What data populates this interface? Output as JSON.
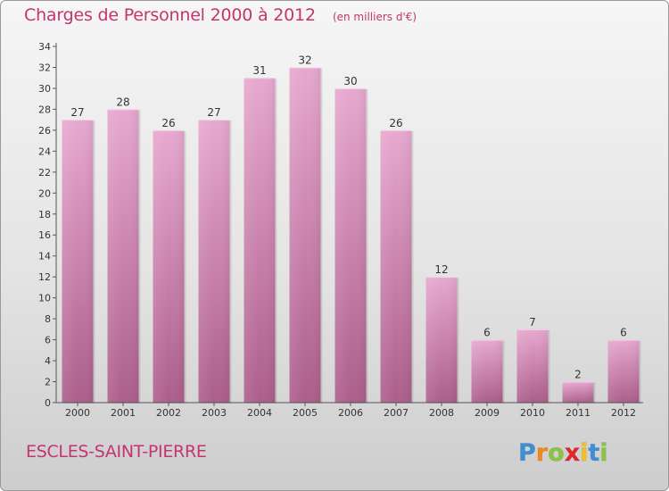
{
  "chart_data": {
    "type": "bar",
    "title": "Charges de Personnel 2000 à 2012",
    "unit_note": "(en milliers d'€)",
    "categories": [
      "2000",
      "2001",
      "2002",
      "2003",
      "2004",
      "2005",
      "2006",
      "2007",
      "2008",
      "2009",
      "2010",
      "2011",
      "2012"
    ],
    "values": [
      27,
      28,
      26,
      27,
      31,
      32,
      30,
      26,
      12,
      6,
      7,
      2,
      6
    ],
    "y_ticks": [
      "0",
      "2",
      "4",
      "6",
      "8",
      "10",
      "12",
      "14",
      "16",
      "18",
      "20",
      "22",
      "24",
      "26",
      "28",
      "30",
      "32",
      "34"
    ],
    "ylim": [
      0,
      34
    ],
    "xlabel": "",
    "ylabel": "",
    "grid": false,
    "data_labels": true,
    "bar_color": "#c8679f",
    "bar_color_light": "#e7a8cf"
  },
  "footer": {
    "commune": "ESCLES-SAINT-PIERRE"
  },
  "brand": {
    "letters": [
      "P",
      "r",
      "o",
      "x",
      "i",
      "t",
      "i"
    ],
    "colors": [
      "#3f8fd6",
      "#f18a1c",
      "#8bc53f",
      "#e3262c",
      "#f1c21b",
      "#3f8fd6",
      "#8bc53f"
    ]
  },
  "colors": {
    "accent": "#c4356f",
    "axis": "#555555"
  }
}
